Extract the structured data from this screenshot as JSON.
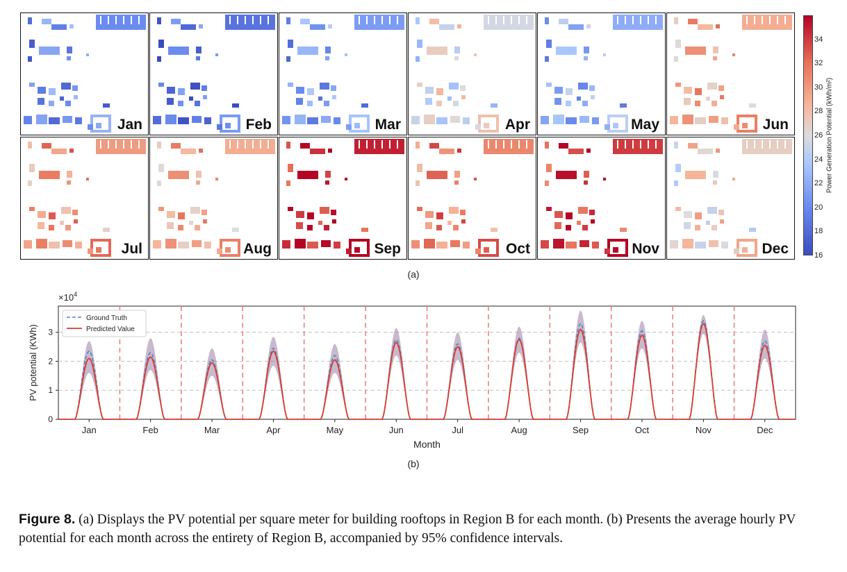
{
  "figure": {
    "panel_a_label": "(a)",
    "panel_b_label": "(b)",
    "caption_label": "Figure 8.",
    "caption_text": " (a) Displays the PV potential per square meter for building rooftops in Region B for each month. (b) Presents the average hourly PV potential for each month across the entirety of Region B, accompanied by 95% confidence intervals."
  },
  "colorbar": {
    "title": "Power Generation Potential (kWh/m²)",
    "min": 16,
    "max": 36,
    "ticks": [
      "34",
      "32",
      "30",
      "28",
      "26",
      "24",
      "22",
      "20",
      "18",
      "16"
    ],
    "colors": {
      "low": "#3b4cc0",
      "mid": "#dddcdc",
      "high": "#b40426"
    }
  },
  "chart_data": [
    {
      "type": "heatmap",
      "panels": [
        {
          "label": "Jan",
          "level": 20
        },
        {
          "label": "Feb",
          "level": 18.5
        },
        {
          "label": "Mar",
          "level": 21
        },
        {
          "label": "Apr",
          "level": 25.5
        },
        {
          "label": "May",
          "level": 22
        },
        {
          "label": "Jun",
          "level": 29
        },
        {
          "label": "Jul",
          "level": 30
        },
        {
          "label": "Aug",
          "level": 29
        },
        {
          "label": "Sep",
          "level": 35
        },
        {
          "label": "Oct",
          "level": 31
        },
        {
          "label": "Nov",
          "level": 34
        },
        {
          "label": "Dec",
          "level": 27
        }
      ]
    },
    {
      "type": "line",
      "exponent_label": "×10",
      "exponent_power": "4",
      "xlabel": "Month",
      "ylabel": "PV potential (KWh)",
      "ylim": [
        0,
        3.9
      ],
      "yticks": [
        "0",
        "1",
        "2",
        "3"
      ],
      "categories": [
        "Jan",
        "Feb",
        "Mar",
        "Apr",
        "May",
        "Jun",
        "Jul",
        "Aug",
        "Sep",
        "Oct",
        "Nov",
        "Dec"
      ],
      "grid": true,
      "legend_position": "top-left",
      "series": [
        {
          "name": "Ground Truth",
          "color": "#4a86c5",
          "style": "dashed",
          "peaks": [
            2.35,
            2.3,
            2.05,
            2.45,
            2.2,
            2.75,
            2.6,
            2.8,
            3.3,
            3.05,
            3.4,
            2.7
          ]
        },
        {
          "name": "Predicted Value",
          "color": "#d93b2b",
          "style": "solid",
          "peaks": [
            2.1,
            2.15,
            1.95,
            2.35,
            2.05,
            2.65,
            2.5,
            2.75,
            3.1,
            2.9,
            3.3,
            2.55
          ]
        }
      ],
      "confidence_interval": {
        "level": "95%",
        "upper_peaks": [
          2.7,
          2.8,
          2.45,
          2.85,
          2.6,
          3.15,
          3.0,
          3.2,
          3.75,
          3.4,
          3.6,
          3.1
        ],
        "lower_peaks": [
          1.6,
          1.7,
          1.5,
          1.85,
          1.6,
          2.2,
          2.05,
          2.3,
          2.65,
          2.45,
          2.95,
          2.1
        ]
      }
    }
  ]
}
